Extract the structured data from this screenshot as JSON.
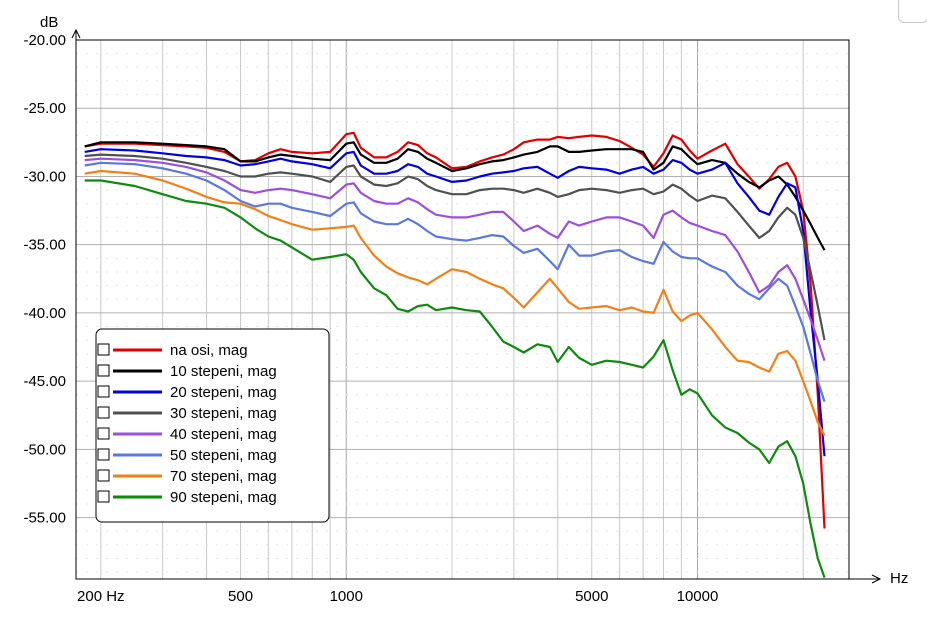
{
  "chart_data": {
    "type": "line",
    "y_unit_label": "dB",
    "x_unit_label": "Hz",
    "x_scale": "log",
    "xlim": [
      170,
      27000
    ],
    "ylim": [
      -59.5,
      -20
    ],
    "y_ticks": [
      {
        "value": -20,
        "label": "-20.00"
      },
      {
        "value": -25,
        "label": "-25.00"
      },
      {
        "value": -30,
        "label": "-30.00"
      },
      {
        "value": -35,
        "label": "-35.00"
      },
      {
        "value": -40,
        "label": "-40.00"
      },
      {
        "value": -45,
        "label": "-45.00"
      },
      {
        "value": -50,
        "label": "-50.00"
      },
      {
        "value": -55,
        "label": "-55.00"
      }
    ],
    "x_tick_labels": [
      {
        "value": 200,
        "label": "200 Hz"
      },
      {
        "value": 500,
        "label": "500"
      },
      {
        "value": 1000,
        "label": "1000"
      },
      {
        "value": 5000,
        "label": "5000"
      },
      {
        "value": 10000,
        "label": "10000"
      }
    ],
    "grid": true,
    "legend_position": "bottom-left",
    "x": [
      180,
      200,
      250,
      300,
      350,
      400,
      450,
      500,
      550,
      600,
      650,
      700,
      800,
      900,
      1000,
      1050,
      1100,
      1200,
      1300,
      1400,
      1500,
      1600,
      1700,
      1800,
      2000,
      2200,
      2400,
      2600,
      2800,
      3000,
      3200,
      3500,
      3800,
      4000,
      4300,
      4600,
      5000,
      5500,
      6000,
      6500,
      7000,
      7500,
      8000,
      8500,
      9000,
      9500,
      10000,
      11000,
      12000,
      13000,
      14000,
      15000,
      16000,
      17000,
      18000,
      19000,
      20000,
      21000,
      22000,
      23000
    ],
    "series": [
      {
        "name": "na osi, mag",
        "color": "#e00000",
        "values": [
          -27.8,
          -27.6,
          -27.6,
          -27.7,
          -27.8,
          -27.9,
          -28.2,
          -28.9,
          -28.8,
          -28.3,
          -28.0,
          -28.2,
          -28.3,
          -28.2,
          -26.9,
          -26.8,
          -27.9,
          -28.6,
          -28.6,
          -28.2,
          -27.5,
          -27.7,
          -28.3,
          -28.6,
          -29.4,
          -29.3,
          -28.9,
          -28.6,
          -28.4,
          -28.0,
          -27.5,
          -27.3,
          -27.3,
          -27.1,
          -27.2,
          -27.1,
          -27.0,
          -27.1,
          -27.4,
          -27.9,
          -28.4,
          -29.3,
          -28.3,
          -27.0,
          -27.3,
          -28.1,
          -28.7,
          -28.1,
          -27.6,
          -29.1,
          -30.0,
          -30.9,
          -30.2,
          -29.3,
          -29.0,
          -30.0,
          -32.5,
          -38.0,
          -46.0,
          -55.8
        ]
      },
      {
        "name": "10 stepeni, mag",
        "color": "#000000",
        "values": [
          -27.8,
          -27.5,
          -27.5,
          -27.6,
          -27.7,
          -27.8,
          -28.0,
          -28.9,
          -28.9,
          -28.6,
          -28.4,
          -28.5,
          -28.7,
          -28.8,
          -27.6,
          -27.5,
          -28.4,
          -29.0,
          -29.0,
          -28.7,
          -28.0,
          -28.2,
          -28.7,
          -29.0,
          -29.6,
          -29.4,
          -29.1,
          -28.9,
          -28.8,
          -28.6,
          -28.4,
          -28.2,
          -27.8,
          -27.8,
          -28.2,
          -28.2,
          -28.1,
          -28.0,
          -28.0,
          -28.0,
          -28.2,
          -29.5,
          -29.0,
          -27.8,
          -28.0,
          -28.6,
          -29.1,
          -28.8,
          -29.0,
          -29.8,
          -30.4,
          -30.8,
          -30.3,
          -30.0,
          -30.6,
          -31.5,
          -32.5,
          -33.5,
          -34.5,
          -35.4
        ]
      },
      {
        "name": "20 stepeni, mag",
        "color": "#0000e0",
        "values": [
          -28.2,
          -28.0,
          -28.1,
          -28.3,
          -28.5,
          -28.6,
          -28.8,
          -29.2,
          -29.1,
          -28.9,
          -28.7,
          -28.9,
          -29.1,
          -29.4,
          -28.3,
          -28.2,
          -29.2,
          -29.8,
          -29.8,
          -29.6,
          -29.1,
          -29.3,
          -29.8,
          -30.0,
          -30.4,
          -30.3,
          -30.0,
          -29.8,
          -29.7,
          -29.6,
          -29.4,
          -29.3,
          -29.8,
          -30.1,
          -29.6,
          -29.3,
          -29.4,
          -29.5,
          -29.8,
          -29.5,
          -29.3,
          -29.8,
          -29.5,
          -28.8,
          -29.0,
          -29.5,
          -29.8,
          -29.5,
          -29.0,
          -30.5,
          -31.5,
          -32.5,
          -32.8,
          -31.5,
          -30.5,
          -30.8,
          -34.0,
          -40.0,
          -45.0,
          -50.5
        ]
      },
      {
        "name": "30 stepeni, mag",
        "color": "#505050",
        "values": [
          -28.5,
          -28.4,
          -28.5,
          -28.7,
          -29.0,
          -29.3,
          -29.6,
          -30.0,
          -30.0,
          -29.8,
          -29.7,
          -29.8,
          -30.0,
          -30.4,
          -29.3,
          -29.2,
          -30.0,
          -30.6,
          -30.7,
          -30.5,
          -30.0,
          -30.2,
          -30.7,
          -31.0,
          -31.3,
          -31.3,
          -31.0,
          -30.9,
          -30.9,
          -31.0,
          -31.2,
          -30.9,
          -31.2,
          -31.5,
          -31.3,
          -31.0,
          -30.9,
          -31.0,
          -31.2,
          -31.0,
          -30.9,
          -31.3,
          -31.1,
          -30.6,
          -30.9,
          -31.4,
          -31.8,
          -31.4,
          -31.6,
          -32.6,
          -33.6,
          -34.5,
          -34.0,
          -33.0,
          -32.3,
          -32.8,
          -34.5,
          -37.0,
          -39.5,
          -42.0
        ]
      },
      {
        "name": "40 stepeni, mag",
        "color": "#9a4fe0",
        "values": [
          -28.8,
          -28.7,
          -28.8,
          -29.0,
          -29.3,
          -29.7,
          -30.3,
          -31.0,
          -31.2,
          -31.0,
          -30.9,
          -31.0,
          -31.3,
          -31.6,
          -30.6,
          -30.5,
          -31.2,
          -31.8,
          -32.0,
          -32.0,
          -31.6,
          -31.9,
          -32.4,
          -32.8,
          -33.0,
          -33.0,
          -32.8,
          -32.6,
          -32.6,
          -33.3,
          -34.0,
          -33.6,
          -34.2,
          -34.5,
          -33.3,
          -33.6,
          -33.3,
          -33.0,
          -33.0,
          -33.3,
          -33.6,
          -34.5,
          -32.8,
          -32.5,
          -33.0,
          -33.4,
          -33.6,
          -34.0,
          -34.3,
          -35.5,
          -37.0,
          -38.5,
          -38.0,
          -37.0,
          -36.5,
          -37.5,
          -39.0,
          -40.5,
          -42.0,
          -43.5
        ]
      },
      {
        "name": "50 stepeni, mag",
        "color": "#5a78e0",
        "values": [
          -29.2,
          -29.0,
          -29.1,
          -29.4,
          -29.8,
          -30.3,
          -31.0,
          -31.8,
          -32.2,
          -32.0,
          -32.0,
          -32.3,
          -32.6,
          -32.9,
          -32.0,
          -31.9,
          -32.7,
          -33.3,
          -33.5,
          -33.5,
          -33.1,
          -33.5,
          -34.0,
          -34.4,
          -34.6,
          -34.7,
          -34.5,
          -34.3,
          -34.4,
          -35.1,
          -35.6,
          -35.3,
          -36.2,
          -36.8,
          -35.0,
          -35.8,
          -35.8,
          -35.5,
          -35.4,
          -35.9,
          -36.2,
          -36.4,
          -34.8,
          -35.5,
          -35.9,
          -36.0,
          -36.0,
          -36.6,
          -37.0,
          -38.0,
          -38.6,
          -39.0,
          -38.2,
          -37.5,
          -38.0,
          -39.5,
          -41.0,
          -43.0,
          -45.0,
          -46.5
        ]
      },
      {
        "name": "70 stepeni, mag",
        "color": "#f28017",
        "values": [
          -29.8,
          -29.6,
          -29.8,
          -30.3,
          -30.9,
          -31.5,
          -31.9,
          -32.0,
          -32.4,
          -32.9,
          -33.2,
          -33.5,
          -33.9,
          -33.8,
          -33.7,
          -33.6,
          -34.5,
          -35.8,
          -36.6,
          -37.1,
          -37.4,
          -37.6,
          -37.9,
          -37.5,
          -36.8,
          -37.0,
          -37.5,
          -37.9,
          -38.2,
          -38.9,
          -39.6,
          -38.5,
          -37.5,
          -38.2,
          -39.2,
          -39.7,
          -39.6,
          -39.5,
          -39.8,
          -39.6,
          -39.9,
          -40.0,
          -38.3,
          -39.9,
          -40.6,
          -40.2,
          -40.0,
          -41.2,
          -42.5,
          -43.5,
          -43.6,
          -44.0,
          -44.3,
          -43.0,
          -42.8,
          -43.5,
          -45.0,
          -46.5,
          -48.0,
          -49.0
        ]
      },
      {
        "name": "90 stepeni, mag",
        "color": "#0e8a0e",
        "values": [
          -30.3,
          -30.3,
          -30.7,
          -31.3,
          -31.8,
          -32.0,
          -32.3,
          -33.0,
          -33.8,
          -34.4,
          -34.7,
          -35.2,
          -36.1,
          -35.9,
          -35.7,
          -36.1,
          -37.0,
          -38.2,
          -38.7,
          -39.7,
          -39.9,
          -39.5,
          -39.4,
          -39.8,
          -39.6,
          -39.8,
          -39.9,
          -41.0,
          -42.1,
          -42.5,
          -42.9,
          -42.3,
          -42.5,
          -43.6,
          -42.5,
          -43.3,
          -43.8,
          -43.5,
          -43.6,
          -43.8,
          -44.0,
          -43.2,
          -42.0,
          -44.2,
          -46.0,
          -45.6,
          -45.9,
          -47.5,
          -48.4,
          -48.8,
          -49.5,
          -50.0,
          -51.0,
          -49.8,
          -49.4,
          -50.5,
          -52.5,
          -55.5,
          -58.0,
          -59.4
        ]
      }
    ]
  }
}
